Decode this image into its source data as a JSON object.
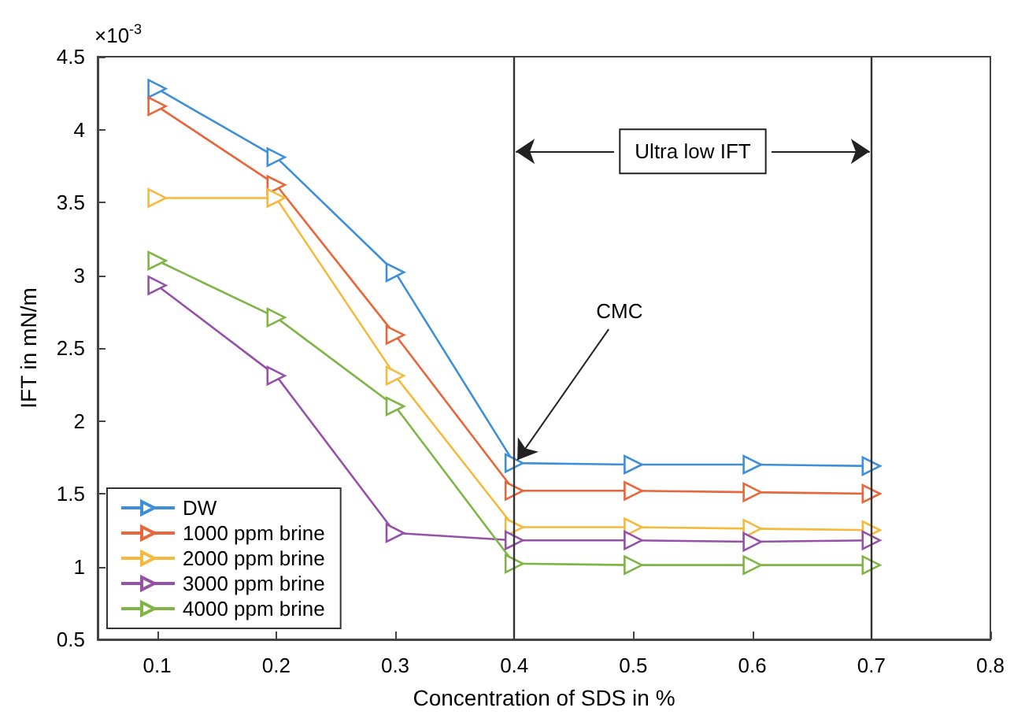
{
  "chart_data": {
    "type": "line",
    "xlabel": "Concentration of SDS in %",
    "ylabel": "IFT in mN/m",
    "x": [
      0.1,
      0.2,
      0.3,
      0.4,
      0.5,
      0.6,
      0.7
    ],
    "series": [
      {
        "name": "DW",
        "color": "#3d8fd9",
        "values": [
          4.28,
          3.81,
          3.02,
          1.71,
          1.7,
          1.7,
          1.69
        ]
      },
      {
        "name": "1000 ppm brine",
        "color": "#e8663a",
        "values": [
          4.16,
          3.62,
          2.59,
          1.52,
          1.52,
          1.51,
          1.5
        ]
      },
      {
        "name": "2000 ppm brine",
        "color": "#f5b93c",
        "values": [
          3.53,
          3.53,
          2.31,
          1.27,
          1.27,
          1.26,
          1.25
        ]
      },
      {
        "name": "3000 ppm brine",
        "color": "#9550a8",
        "values": [
          2.93,
          2.31,
          1.23,
          1.18,
          1.18,
          1.17,
          1.18
        ]
      },
      {
        "name": "4000 ppm brine",
        "color": "#7fb545",
        "values": [
          3.1,
          2.71,
          2.1,
          1.02,
          1.01,
          1.01,
          1.01
        ]
      }
    ],
    "xlim": [
      0.05,
      0.8
    ],
    "xticks": [
      0.1,
      0.2,
      0.3,
      0.4,
      0.5,
      0.6,
      0.7,
      0.8
    ],
    "ylim": [
      0.5,
      4.5
    ],
    "yticks": [
      0.5,
      1,
      1.5,
      2,
      2.5,
      3,
      3.5,
      4,
      4.5
    ],
    "ref_lines": [
      {
        "axis": "x",
        "value": 0.4
      },
      {
        "axis": "x",
        "value": 0.7
      }
    ],
    "annotations": [
      "×10$^{-3}$",
      {
        "text": "CMC",
        "x": 0.4,
        "y": 1.71
      },
      {
        "text": "Ultra low IFT",
        "x": 0.4,
        "y": 3.85
      }
    ],
    "legend": "bottom left",
    "marker": "triangle",
    "line_style": "solid",
    "grid": false
  }
}
